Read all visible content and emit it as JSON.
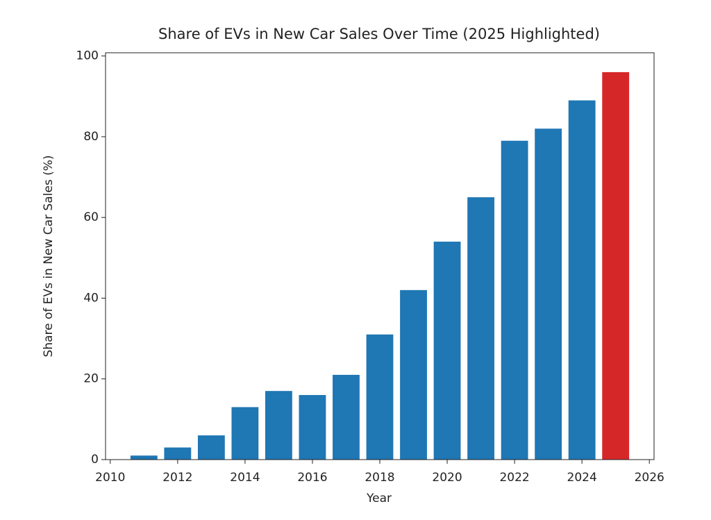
{
  "chart_data": {
    "type": "bar",
    "title": "Share of EVs in New Car Sales Over Time (2025 Highlighted)",
    "x_label": "Year",
    "y_label": "Share of EVs in New Car Sales (%)",
    "x": [
      2011,
      2012,
      2013,
      2014,
      2015,
      2016,
      2017,
      2018,
      2019,
      2020,
      2021,
      2022,
      2023,
      2024,
      2025
    ],
    "values": [
      1,
      3,
      6,
      13,
      17,
      16,
      21,
      31,
      42,
      54,
      65,
      79,
      82,
      89,
      96
    ],
    "colors": [
      "#1f77b4",
      "#1f77b4",
      "#1f77b4",
      "#1f77b4",
      "#1f77b4",
      "#1f77b4",
      "#1f77b4",
      "#1f77b4",
      "#1f77b4",
      "#1f77b4",
      "#1f77b4",
      "#1f77b4",
      "#1f77b4",
      "#1f77b4",
      "#d62728"
    ],
    "xlim": [
      2009.86,
      2026.14
    ],
    "xticks": [
      2010,
      2012,
      2014,
      2016,
      2018,
      2020,
      2022,
      2024,
      2026
    ],
    "ylim": [
      0,
      100.8
    ],
    "yticks": [
      0,
      20,
      40,
      60,
      80,
      100
    ],
    "grid": false
  }
}
